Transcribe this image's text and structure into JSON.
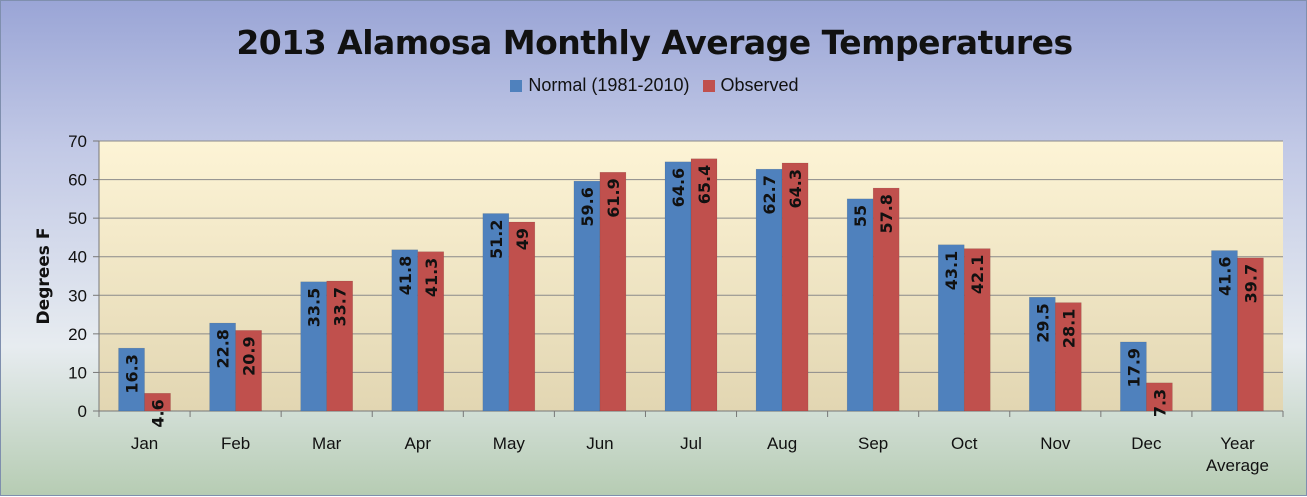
{
  "chart_data": {
    "type": "bar",
    "title": "2013 Alamosa Monthly Average Temperatures",
    "xlabel": "",
    "ylabel": "Degrees F",
    "ylim": [
      0,
      70
    ],
    "yticks": [
      0,
      10,
      20,
      30,
      40,
      50,
      60,
      70
    ],
    "grid": true,
    "legend_position": "top",
    "categories": [
      "Jan",
      "Feb",
      "Mar",
      "Apr",
      "May",
      "Jun",
      "Jul",
      "Aug",
      "Sep",
      "Oct",
      "Nov",
      "Dec",
      "Year Average"
    ],
    "series": [
      {
        "name": "Normal (1981-2010)",
        "color": "#4f81bd",
        "values": [
          16.3,
          22.8,
          33.5,
          41.8,
          51.2,
          59.6,
          64.6,
          62.7,
          55,
          43.1,
          29.5,
          17.9,
          41.6
        ]
      },
      {
        "name": "Observed",
        "color": "#c0504d",
        "values": [
          4.6,
          20.9,
          33.7,
          41.3,
          49,
          61.9,
          65.4,
          64.3,
          57.8,
          42.1,
          28.1,
          7.3,
          39.7
        ]
      }
    ]
  }
}
